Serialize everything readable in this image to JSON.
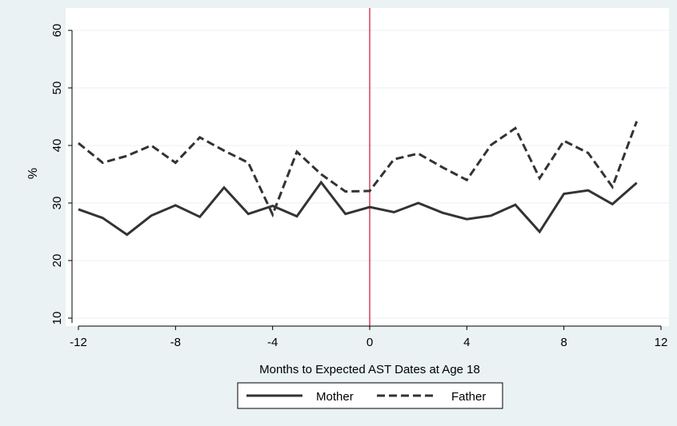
{
  "chart_data": {
    "type": "line",
    "title": "",
    "xlabel": "Months to Expected AST Dates at Age 18",
    "ylabel": "%",
    "xlim": [
      -12,
      12
    ],
    "ylim": [
      10,
      60
    ],
    "xticks": [
      -12,
      -8,
      -4,
      0,
      4,
      8,
      12
    ],
    "yticks": [
      10,
      20,
      30,
      40,
      50,
      60
    ],
    "grid": "horizontal",
    "legend_position": "bottom",
    "vertical_line": {
      "x": 0,
      "color": "#c8102e"
    },
    "x": [
      -12,
      -11,
      -10,
      -9,
      -8,
      -7,
      -6,
      -5,
      -4,
      -3,
      -2,
      -1,
      0,
      1,
      2,
      3,
      4,
      5,
      6,
      7,
      8,
      9,
      10,
      11
    ],
    "series": [
      {
        "name": "Mother",
        "style": "solid",
        "color": "#333333",
        "values": [
          28.9,
          27.4,
          24.5,
          27.8,
          29.6,
          27.6,
          32.7,
          28.1,
          29.5,
          27.7,
          33.6,
          28.1,
          29.3,
          28.4,
          30.0,
          28.3,
          27.2,
          27.8,
          29.7,
          25.0,
          31.6,
          32.2,
          29.8,
          33.5
        ]
      },
      {
        "name": "Father",
        "style": "dashed",
        "color": "#333333",
        "values": [
          40.4,
          37.0,
          38.2,
          40.0,
          37.0,
          41.4,
          39.1,
          37.0,
          28.0,
          38.9,
          35.0,
          32.0,
          32.1,
          37.6,
          38.6,
          36.2,
          34.0,
          40.1,
          43.0,
          34.3,
          40.8,
          38.7,
          32.8,
          44.2
        ]
      }
    ]
  }
}
